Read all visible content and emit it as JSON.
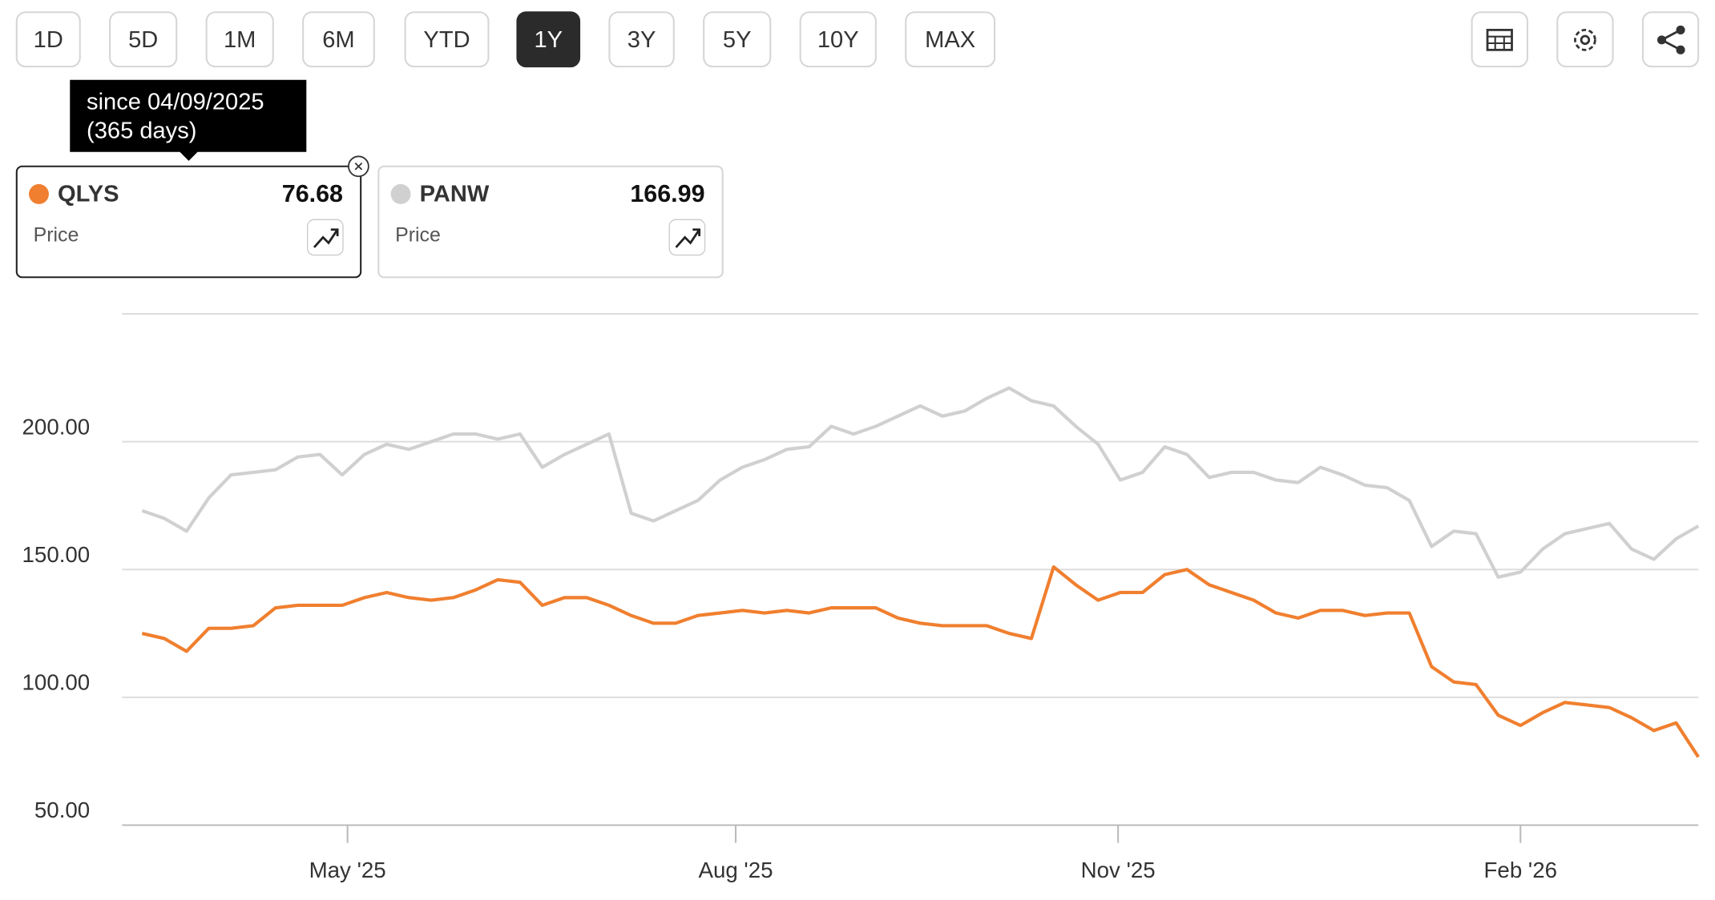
{
  "toolbar": {
    "ranges": [
      "1D",
      "5D",
      "1M",
      "6M",
      "YTD",
      "1Y",
      "3Y",
      "5Y",
      "10Y",
      "MAX"
    ],
    "active": 5
  },
  "tooltip": {
    "lines": [
      "since 04/09/2025",
      "(365 days)"
    ]
  },
  "cards": [
    {
      "symbol": "QLYS",
      "price": 76.68,
      "label": "Price",
      "color": "#f07f2f",
      "selected": true
    },
    {
      "symbol": "PANW",
      "price": 166.99,
      "label": "Price",
      "color": "#d0d0d0",
      "selected": false
    }
  ],
  "chart_data": {
    "type": "line",
    "x": [
      0,
      1,
      2,
      3,
      4,
      5,
      6,
      7,
      8,
      9,
      10,
      11,
      12,
      13,
      14,
      15,
      16,
      17,
      18,
      19,
      20,
      21,
      22,
      23,
      24,
      25,
      26,
      27,
      28,
      29,
      30,
      31,
      32,
      33,
      34,
      35,
      36,
      37,
      38,
      39,
      40,
      41,
      42,
      43,
      44,
      45,
      46,
      47,
      48,
      49,
      50,
      51,
      52,
      53,
      54,
      55,
      56,
      57,
      58,
      59,
      60,
      61,
      62,
      63,
      64,
      65,
      66,
      67,
      68,
      69,
      70
    ],
    "xlim": [
      0,
      70
    ],
    "xticks": [
      {
        "value": 9.24,
        "label": "May '25"
      },
      {
        "value": 26.7,
        "label": "Aug '25"
      },
      {
        "value": 43.9,
        "label": "Nov '25"
      },
      {
        "value": 62.0,
        "label": "Feb '26"
      }
    ],
    "ylim": [
      50,
      250
    ],
    "yticks": [
      {
        "value": 50,
        "label": "50.00"
      },
      {
        "value": 100,
        "label": "100.00"
      },
      {
        "value": 150,
        "label": "150.00"
      },
      {
        "value": 200,
        "label": "200.00"
      }
    ],
    "grid": true,
    "series": [
      {
        "name": "PANW",
        "color": "#d0d0d0",
        "values": [
          173,
          170,
          165,
          178,
          187,
          188,
          189,
          194,
          195,
          187,
          195,
          199,
          197,
          200,
          203,
          203,
          201,
          203,
          190,
          195,
          199,
          203,
          172,
          169,
          173,
          177,
          185,
          190,
          193,
          197,
          198,
          206,
          203,
          206,
          210,
          214,
          210,
          212,
          217,
          221,
          216,
          214,
          206,
          199,
          185,
          188,
          198,
          195,
          186,
          188,
          188,
          185,
          184,
          190,
          187,
          183,
          182,
          177,
          159,
          165,
          164,
          147,
          149,
          158,
          164,
          166,
          168,
          158,
          154,
          162,
          166.99
        ]
      },
      {
        "name": "QLYS",
        "color": "#f07f2f",
        "values": [
          125,
          123,
          118,
          127,
          127,
          128,
          135,
          136,
          136,
          136,
          139,
          141,
          139,
          138,
          139,
          142,
          146,
          145,
          136,
          139,
          139,
          136,
          132,
          129,
          129,
          132,
          133,
          134,
          133,
          134,
          133,
          135,
          135,
          135,
          131,
          129,
          128,
          128,
          128,
          125,
          123,
          151,
          144,
          138,
          141,
          141,
          148,
          150,
          144,
          141,
          138,
          133,
          131,
          134,
          134,
          132,
          133,
          133,
          112,
          106,
          105,
          93,
          89,
          94,
          98,
          97,
          96,
          92,
          87,
          90,
          76.68
        ]
      }
    ]
  }
}
